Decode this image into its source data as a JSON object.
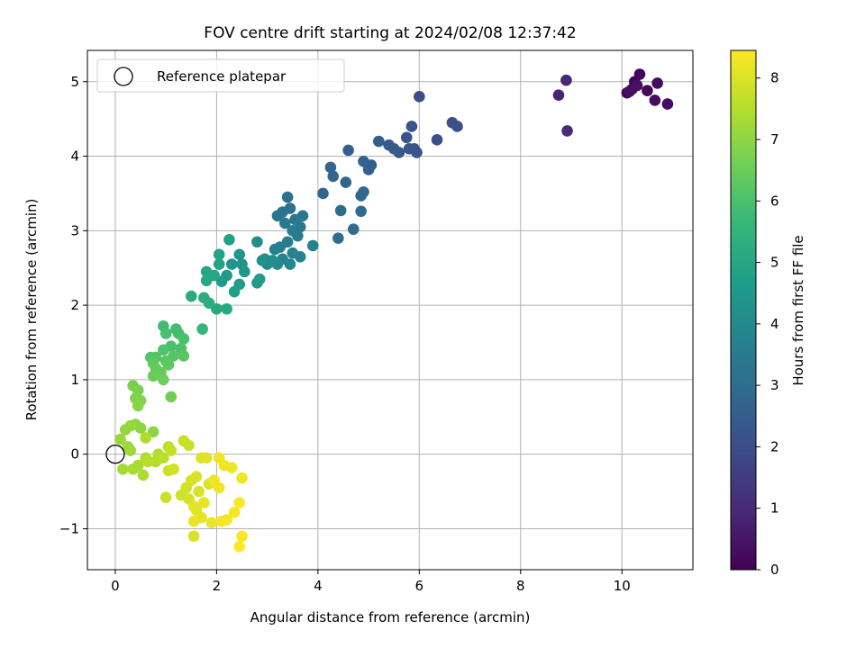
{
  "chart_data": {
    "type": "scatter",
    "title": "FOV centre drift starting at 2024/02/08 12:37:42",
    "xlabel": "Angular distance from reference (arcmin)",
    "ylabel": "Rotation from reference (arcmin)",
    "xlim": [
      -0.55,
      11.4
    ],
    "ylim": [
      -1.55,
      5.42
    ],
    "xticks": [
      0,
      2,
      4,
      6,
      8,
      10
    ],
    "yticks": [
      -1,
      0,
      1,
      2,
      3,
      4,
      5
    ],
    "xtick_labels": [
      "0",
      "2",
      "4",
      "6",
      "8",
      "10"
    ],
    "ytick_labels": [
      "−1",
      "0",
      "1",
      "2",
      "3",
      "4",
      "5"
    ],
    "grid": true,
    "legend": {
      "position": "top-left",
      "entries": [
        "Reference platepar"
      ]
    },
    "reference_point": {
      "x": 0,
      "y": 0,
      "marker": "open-circle",
      "color": "#000000"
    },
    "colorbar": {
      "label": "Hours from first FF file",
      "min": 0,
      "max": 8.45,
      "ticks": [
        0,
        1,
        2,
        3,
        4,
        5,
        6,
        7,
        8
      ],
      "tick_labels": [
        "0",
        "1",
        "2",
        "3",
        "4",
        "5",
        "6",
        "7",
        "8"
      ],
      "colormap": "viridis",
      "colors": [
        "#440154",
        "#482878",
        "#3e4989",
        "#31688e",
        "#26828e",
        "#1f9e89",
        "#35b779",
        "#6ece58",
        "#b5de2b",
        "#fde725"
      ]
    },
    "points": [
      {
        "x": 10.1,
        "y": 4.85,
        "h": 0.1
      },
      {
        "x": 10.25,
        "y": 5.0,
        "h": 0.1
      },
      {
        "x": 10.35,
        "y": 5.1,
        "h": 0.15
      },
      {
        "x": 10.2,
        "y": 4.9,
        "h": 0.2
      },
      {
        "x": 10.5,
        "y": 4.88,
        "h": 0.2
      },
      {
        "x": 10.7,
        "y": 4.98,
        "h": 0.25
      },
      {
        "x": 10.65,
        "y": 4.75,
        "h": 0.3
      },
      {
        "x": 10.9,
        "y": 4.7,
        "h": 0.3
      },
      {
        "x": 10.15,
        "y": 4.87,
        "h": 0.35
      },
      {
        "x": 10.3,
        "y": 4.95,
        "h": 0.4
      },
      {
        "x": 8.75,
        "y": 4.82,
        "h": 0.9
      },
      {
        "x": 8.9,
        "y": 5.02,
        "h": 0.95
      },
      {
        "x": 8.92,
        "y": 4.34,
        "h": 1.0
      },
      {
        "x": 6.0,
        "y": 4.8,
        "h": 2.0
      },
      {
        "x": 6.65,
        "y": 4.45,
        "h": 2.0
      },
      {
        "x": 6.75,
        "y": 4.4,
        "h": 2.05
      },
      {
        "x": 6.35,
        "y": 4.22,
        "h": 2.1
      },
      {
        "x": 5.85,
        "y": 4.4,
        "h": 2.2
      },
      {
        "x": 5.75,
        "y": 4.25,
        "h": 2.2
      },
      {
        "x": 5.9,
        "y": 4.1,
        "h": 2.25
      },
      {
        "x": 5.95,
        "y": 4.05,
        "h": 2.25
      },
      {
        "x": 5.8,
        "y": 4.1,
        "h": 2.3
      },
      {
        "x": 5.6,
        "y": 4.05,
        "h": 2.35
      },
      {
        "x": 5.5,
        "y": 4.1,
        "h": 2.4
      },
      {
        "x": 5.4,
        "y": 4.15,
        "h": 2.4
      },
      {
        "x": 5.2,
        "y": 4.2,
        "h": 2.45
      },
      {
        "x": 5.05,
        "y": 3.88,
        "h": 2.5
      },
      {
        "x": 5.0,
        "y": 3.82,
        "h": 2.5
      },
      {
        "x": 4.9,
        "y": 3.93,
        "h": 2.6
      },
      {
        "x": 4.6,
        "y": 4.08,
        "h": 2.6
      },
      {
        "x": 4.55,
        "y": 3.65,
        "h": 2.7
      },
      {
        "x": 4.3,
        "y": 3.73,
        "h": 2.75
      },
      {
        "x": 4.25,
        "y": 3.85,
        "h": 2.75
      },
      {
        "x": 4.1,
        "y": 3.5,
        "h": 2.8
      },
      {
        "x": 4.9,
        "y": 3.52,
        "h": 2.85
      },
      {
        "x": 4.85,
        "y": 3.47,
        "h": 2.85
      },
      {
        "x": 4.85,
        "y": 3.26,
        "h": 2.9
      },
      {
        "x": 4.7,
        "y": 3.02,
        "h": 2.95
      },
      {
        "x": 4.45,
        "y": 3.27,
        "h": 3.0
      },
      {
        "x": 4.4,
        "y": 2.9,
        "h": 3.0
      },
      {
        "x": 3.4,
        "y": 3.45,
        "h": 3.1
      },
      {
        "x": 3.45,
        "y": 3.3,
        "h": 3.15
      },
      {
        "x": 3.3,
        "y": 3.25,
        "h": 3.2
      },
      {
        "x": 3.2,
        "y": 3.2,
        "h": 3.25
      },
      {
        "x": 3.7,
        "y": 3.2,
        "h": 3.3
      },
      {
        "x": 3.65,
        "y": 3.05,
        "h": 3.35
      },
      {
        "x": 3.55,
        "y": 3.15,
        "h": 3.4
      },
      {
        "x": 3.35,
        "y": 3.1,
        "h": 3.45
      },
      {
        "x": 3.5,
        "y": 3.0,
        "h": 3.5
      },
      {
        "x": 3.6,
        "y": 2.93,
        "h": 3.55
      },
      {
        "x": 3.4,
        "y": 2.85,
        "h": 3.6
      },
      {
        "x": 3.25,
        "y": 2.78,
        "h": 3.65
      },
      {
        "x": 3.15,
        "y": 2.75,
        "h": 3.7
      },
      {
        "x": 3.5,
        "y": 2.7,
        "h": 3.75
      },
      {
        "x": 3.65,
        "y": 2.65,
        "h": 3.8
      },
      {
        "x": 3.9,
        "y": 2.8,
        "h": 3.8
      },
      {
        "x": 3.3,
        "y": 2.62,
        "h": 3.85
      },
      {
        "x": 3.45,
        "y": 2.55,
        "h": 3.9
      },
      {
        "x": 3.2,
        "y": 2.55,
        "h": 3.95
      },
      {
        "x": 3.0,
        "y": 2.55,
        "h": 4.0
      },
      {
        "x": 2.95,
        "y": 2.62,
        "h": 4.05
      },
      {
        "x": 3.1,
        "y": 2.6,
        "h": 4.1
      },
      {
        "x": 2.8,
        "y": 2.85,
        "h": 4.2
      },
      {
        "x": 2.9,
        "y": 2.6,
        "h": 4.25
      },
      {
        "x": 2.5,
        "y": 2.55,
        "h": 4.3
      },
      {
        "x": 2.45,
        "y": 2.68,
        "h": 4.35
      },
      {
        "x": 2.3,
        "y": 2.55,
        "h": 4.4
      },
      {
        "x": 2.55,
        "y": 2.45,
        "h": 4.45
      },
      {
        "x": 2.2,
        "y": 2.4,
        "h": 4.5
      },
      {
        "x": 2.1,
        "y": 2.32,
        "h": 4.55
      },
      {
        "x": 2.8,
        "y": 2.3,
        "h": 4.6
      },
      {
        "x": 2.85,
        "y": 2.35,
        "h": 4.65
      },
      {
        "x": 2.45,
        "y": 2.28,
        "h": 4.7
      },
      {
        "x": 2.35,
        "y": 2.18,
        "h": 4.75
      },
      {
        "x": 2.25,
        "y": 2.88,
        "h": 4.8
      },
      {
        "x": 2.05,
        "y": 2.68,
        "h": 4.85
      },
      {
        "x": 2.05,
        "y": 2.55,
        "h": 4.9
      },
      {
        "x": 1.8,
        "y": 2.45,
        "h": 4.95
      },
      {
        "x": 1.95,
        "y": 2.4,
        "h": 5.0
      },
      {
        "x": 1.8,
        "y": 2.33,
        "h": 5.05
      },
      {
        "x": 2.0,
        "y": 1.95,
        "h": 5.1
      },
      {
        "x": 2.2,
        "y": 1.95,
        "h": 5.1
      },
      {
        "x": 1.5,
        "y": 2.12,
        "h": 5.2
      },
      {
        "x": 1.75,
        "y": 2.1,
        "h": 5.25
      },
      {
        "x": 1.85,
        "y": 2.03,
        "h": 5.3
      },
      {
        "x": 1.72,
        "y": 1.68,
        "h": 5.6
      },
      {
        "x": 0.95,
        "y": 1.72,
        "h": 5.8
      },
      {
        "x": 1.2,
        "y": 1.68,
        "h": 5.85
      },
      {
        "x": 1.25,
        "y": 1.62,
        "h": 5.9
      },
      {
        "x": 1.0,
        "y": 1.62,
        "h": 5.95
      },
      {
        "x": 1.35,
        "y": 1.55,
        "h": 6.0
      },
      {
        "x": 1.1,
        "y": 1.45,
        "h": 6.0
      },
      {
        "x": 1.3,
        "y": 1.42,
        "h": 6.05
      },
      {
        "x": 0.95,
        "y": 1.4,
        "h": 6.1
      },
      {
        "x": 0.7,
        "y": 1.3,
        "h": 6.1
      },
      {
        "x": 0.8,
        "y": 1.3,
        "h": 6.15
      },
      {
        "x": 1.15,
        "y": 1.32,
        "h": 6.2
      },
      {
        "x": 1.35,
        "y": 1.32,
        "h": 6.25
      },
      {
        "x": 1.0,
        "y": 1.25,
        "h": 6.25
      },
      {
        "x": 1.05,
        "y": 1.2,
        "h": 6.3
      },
      {
        "x": 0.75,
        "y": 1.22,
        "h": 6.35
      },
      {
        "x": 0.8,
        "y": 1.15,
        "h": 6.4
      },
      {
        "x": 0.9,
        "y": 1.1,
        "h": 6.45
      },
      {
        "x": 0.75,
        "y": 1.05,
        "h": 6.5
      },
      {
        "x": 0.95,
        "y": 1.0,
        "h": 6.55
      },
      {
        "x": 1.1,
        "y": 0.77,
        "h": 6.6
      },
      {
        "x": 0.35,
        "y": 0.92,
        "h": 6.7
      },
      {
        "x": 0.45,
        "y": 0.86,
        "h": 6.75
      },
      {
        "x": 0.4,
        "y": 0.75,
        "h": 6.8
      },
      {
        "x": 0.5,
        "y": 0.72,
        "h": 6.85
      },
      {
        "x": 0.45,
        "y": 0.65,
        "h": 6.9
      },
      {
        "x": 0.75,
        "y": 0.3,
        "h": 6.95
      },
      {
        "x": 0.4,
        "y": 0.4,
        "h": 7.0
      },
      {
        "x": 0.5,
        "y": 0.35,
        "h": 7.0
      },
      {
        "x": 0.2,
        "y": 0.33,
        "h": 7.05
      },
      {
        "x": 0.3,
        "y": 0.38,
        "h": 7.1
      },
      {
        "x": 0.1,
        "y": 0.2,
        "h": 7.15
      },
      {
        "x": 0.25,
        "y": 0.1,
        "h": 7.2
      },
      {
        "x": 0.3,
        "y": 0.05,
        "h": 7.25
      },
      {
        "x": 0.15,
        "y": -0.2,
        "h": 7.3
      },
      {
        "x": 0.35,
        "y": -0.2,
        "h": 7.35
      },
      {
        "x": 0.45,
        "y": -0.15,
        "h": 7.35
      },
      {
        "x": 0.55,
        "y": -0.28,
        "h": 7.4
      },
      {
        "x": 0.6,
        "y": 0.22,
        "h": 7.4
      },
      {
        "x": 0.6,
        "y": -0.05,
        "h": 7.45
      },
      {
        "x": 0.8,
        "y": -0.1,
        "h": 7.5
      },
      {
        "x": 0.85,
        "y": 0.0,
        "h": 7.5
      },
      {
        "x": 0.65,
        "y": -0.1,
        "h": 7.55
      },
      {
        "x": 0.95,
        "y": -0.05,
        "h": 7.6
      },
      {
        "x": 1.05,
        "y": 0.1,
        "h": 7.65
      },
      {
        "x": 1.1,
        "y": 0.05,
        "h": 7.7
      },
      {
        "x": 1.35,
        "y": 0.18,
        "h": 7.75
      },
      {
        "x": 1.45,
        "y": 0.12,
        "h": 7.75
      },
      {
        "x": 1.0,
        "y": -0.58,
        "h": 7.8
      },
      {
        "x": 1.05,
        "y": -0.22,
        "h": 7.8
      },
      {
        "x": 1.15,
        "y": -0.2,
        "h": 7.85
      },
      {
        "x": 1.3,
        "y": -0.55,
        "h": 7.85
      },
      {
        "x": 1.4,
        "y": -0.45,
        "h": 7.9
      },
      {
        "x": 1.45,
        "y": -0.6,
        "h": 7.9
      },
      {
        "x": 1.5,
        "y": -0.35,
        "h": 7.95
      },
      {
        "x": 1.6,
        "y": -0.3,
        "h": 8.0
      },
      {
        "x": 1.65,
        "y": -0.5,
        "h": 8.0
      },
      {
        "x": 1.7,
        "y": -0.05,
        "h": 8.0
      },
      {
        "x": 1.8,
        "y": -0.05,
        "h": 8.05
      },
      {
        "x": 1.85,
        "y": -0.4,
        "h": 8.05
      },
      {
        "x": 1.55,
        "y": -0.7,
        "h": 8.1
      },
      {
        "x": 1.6,
        "y": -0.75,
        "h": 8.1
      },
      {
        "x": 1.7,
        "y": -0.85,
        "h": 8.15
      },
      {
        "x": 1.75,
        "y": -0.65,
        "h": 8.15
      },
      {
        "x": 1.55,
        "y": -0.9,
        "h": 8.2
      },
      {
        "x": 1.9,
        "y": -0.92,
        "h": 8.2
      },
      {
        "x": 1.95,
        "y": -0.35,
        "h": 8.25
      },
      {
        "x": 2.05,
        "y": -0.45,
        "h": 8.25
      },
      {
        "x": 2.05,
        "y": -0.05,
        "h": 8.25
      },
      {
        "x": 2.15,
        "y": -0.15,
        "h": 8.3
      },
      {
        "x": 2.3,
        "y": -0.18,
        "h": 8.3
      },
      {
        "x": 2.5,
        "y": -0.32,
        "h": 8.3
      },
      {
        "x": 2.1,
        "y": -0.9,
        "h": 8.35
      },
      {
        "x": 2.2,
        "y": -0.88,
        "h": 8.35
      },
      {
        "x": 2.35,
        "y": -0.78,
        "h": 8.35
      },
      {
        "x": 2.45,
        "y": -0.65,
        "h": 8.4
      },
      {
        "x": 2.5,
        "y": -1.1,
        "h": 8.4
      },
      {
        "x": 2.45,
        "y": -1.24,
        "h": 8.45
      },
      {
        "x": 1.55,
        "y": -1.1,
        "h": 7.95
      },
      {
        "x": 1.4,
        "y": -0.45,
        "h": 7.9
      }
    ]
  }
}
